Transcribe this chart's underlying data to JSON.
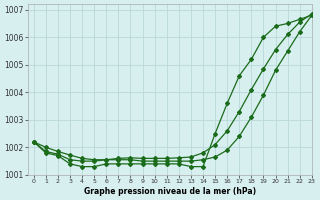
{
  "title": "Graphe pression niveau de la mer (hPa)",
  "background_color": "#d8eff0",
  "grid_color": "#b8d8da",
  "line_color": "#1a6b1a",
  "marker_color": "#1a6b1a",
  "xlim": [
    -0.5,
    23
  ],
  "ylim": [
    1001.0,
    1007.2
  ],
  "yticks": [
    1001,
    1002,
    1003,
    1004,
    1005,
    1006,
    1007
  ],
  "xticks": [
    0,
    1,
    2,
    3,
    4,
    5,
    6,
    7,
    8,
    9,
    10,
    11,
    12,
    13,
    14,
    15,
    16,
    17,
    18,
    19,
    20,
    21,
    22,
    23
  ],
  "series1": [
    1002.2,
    1001.8,
    1001.7,
    1001.4,
    1001.3,
    1001.3,
    1001.4,
    1001.4,
    1001.4,
    1001.4,
    1001.4,
    1001.4,
    1001.4,
    1001.3,
    1001.3,
    1002.5,
    1003.6,
    1004.6,
    1005.2,
    1006.0,
    1006.4,
    1006.5,
    1006.65,
    1006.8
  ],
  "series2": [
    1002.2,
    1001.85,
    1001.75,
    1001.55,
    1001.5,
    1001.5,
    1001.55,
    1001.55,
    1001.55,
    1001.5,
    1001.5,
    1001.5,
    1001.5,
    1001.5,
    1001.55,
    1001.65,
    1001.9,
    1002.4,
    1003.1,
    1003.9,
    1004.8,
    1005.5,
    1006.2,
    1006.8
  ],
  "series3": [
    1002.2,
    1002.0,
    1001.85,
    1001.72,
    1001.6,
    1001.55,
    1001.55,
    1001.6,
    1001.62,
    1001.6,
    1001.6,
    1001.6,
    1001.62,
    1001.65,
    1001.8,
    1002.1,
    1002.6,
    1003.3,
    1004.1,
    1004.85,
    1005.55,
    1006.1,
    1006.55,
    1006.85
  ]
}
